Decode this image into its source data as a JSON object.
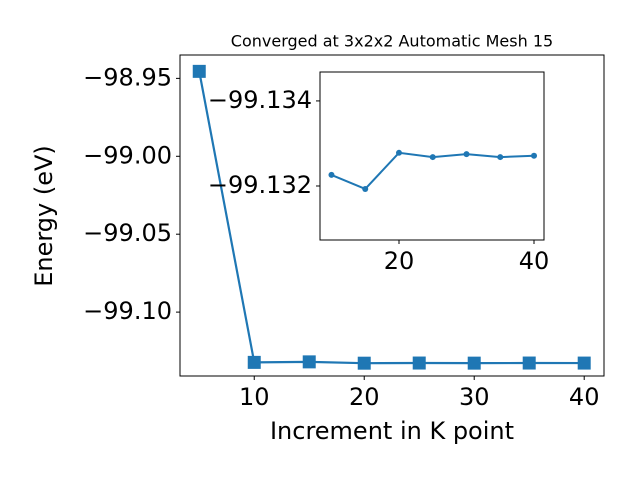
{
  "chart_data": [
    {
      "type": "line",
      "title": "Converged at 3x2x2 Automatic Mesh 15",
      "xlabel": "Increment in K point",
      "ylabel": "Energy (eV)",
      "x": [
        5,
        10,
        15,
        20,
        25,
        30,
        35,
        40
      ],
      "series": [
        {
          "color": "#1f77b4",
          "marker": "square",
          "values": [
            -98.9455,
            -99.13226,
            -99.13193,
            -99.13278,
            -99.13268,
            -99.13275,
            -99.13268,
            -99.13271
          ]
        }
      ],
      "xlim": [
        3.25,
        41.8
      ],
      "ylim": [
        -99.141,
        -98.935
      ],
      "xticks": [
        10,
        20,
        30,
        40
      ],
      "yticks": [
        {
          "value": -98.95,
          "label": "−98.95"
        },
        {
          "value": -99.0,
          "label": "−99.00"
        },
        {
          "value": -99.05,
          "label": "−99.05"
        },
        {
          "value": -99.1,
          "label": "−99.10"
        }
      ]
    },
    {
      "type": "line",
      "x": [
        10,
        15,
        20,
        25,
        30,
        35,
        40
      ],
      "series": [
        {
          "color": "#1f77b4",
          "marker": "circle",
          "values": [
            -99.13226,
            -99.13193,
            -99.13278,
            -99.13268,
            -99.13275,
            -99.13268,
            -99.13271
          ]
        }
      ],
      "xlim": [
        8.3,
        41.48
      ],
      "ylim": [
        -99.13073,
        -99.13468
      ],
      "xticks": [
        20,
        40
      ],
      "yticks": [
        {
          "value": -99.132,
          "label": "−99.132"
        },
        {
          "value": -99.134,
          "label": "−99.134"
        }
      ]
    }
  ]
}
